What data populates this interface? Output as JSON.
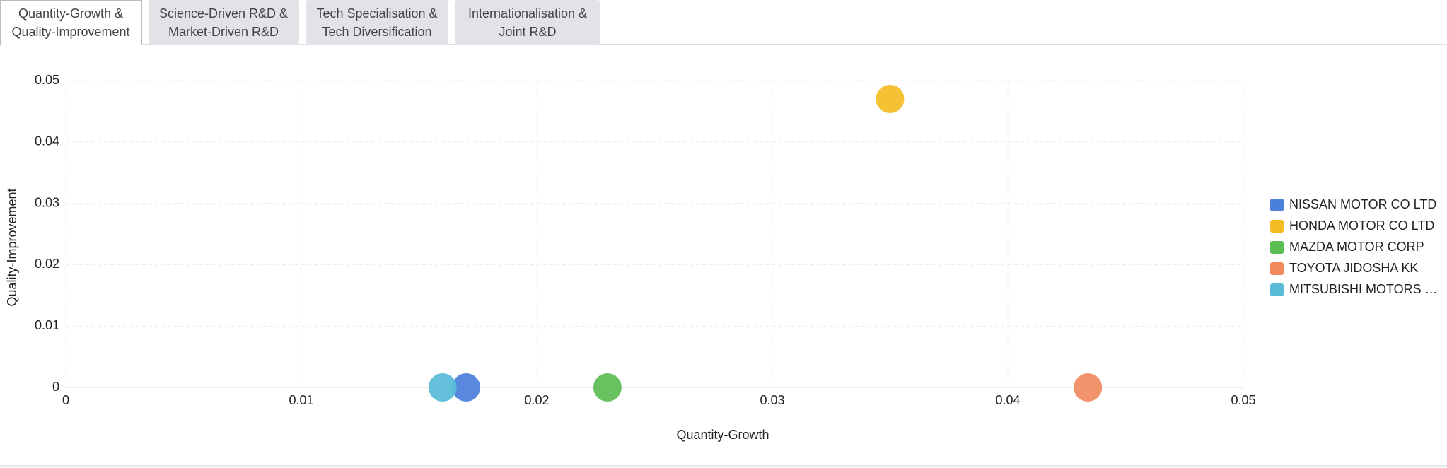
{
  "tabs": [
    {
      "lines": [
        "Quantity-Growth &",
        "Quality-Improvement"
      ]
    },
    {
      "lines": [
        "Science-Driven R&D &",
        "Market-Driven R&D"
      ]
    },
    {
      "lines": [
        "Tech Specialisation &",
        "Tech Diversification"
      ]
    },
    {
      "lines": [
        "Internationalisation &",
        "Joint R&D"
      ]
    }
  ],
  "chart_data": {
    "type": "scatter",
    "x_label": "Quantity-Growth",
    "y_label": "Quality-Improvement",
    "xlim": [
      0,
      0.05
    ],
    "ylim": [
      0,
      0.05
    ],
    "xticks": [
      0,
      0.01,
      0.02,
      0.03,
      0.04,
      0.05
    ],
    "yticks": [
      0,
      0.01,
      0.02,
      0.03,
      0.04,
      0.05
    ],
    "grid": true,
    "legend": "right",
    "series": [
      {
        "name": "NISSAN MOTOR CO LTD",
        "color": "#4a7fdc",
        "x": [
          0.017
        ],
        "values": [
          0
        ]
      },
      {
        "name": "HONDA MOTOR CO LTD",
        "color": "#f4bc24",
        "x": [
          0.035
        ],
        "values": [
          0.047
        ]
      },
      {
        "name": "MAZDA MOTOR CORP",
        "color": "#5cbd52",
        "x": [
          0.023
        ],
        "values": [
          0
        ]
      },
      {
        "name": "TOYOTA JIDOSHA KK",
        "color": "#f28a5e",
        "x": [
          0.0434
        ],
        "values": [
          0
        ]
      },
      {
        "name": "MITSUBISHI MOTORS …",
        "color": "#58bcd8",
        "x": [
          0.016
        ],
        "values": [
          0
        ]
      }
    ]
  }
}
